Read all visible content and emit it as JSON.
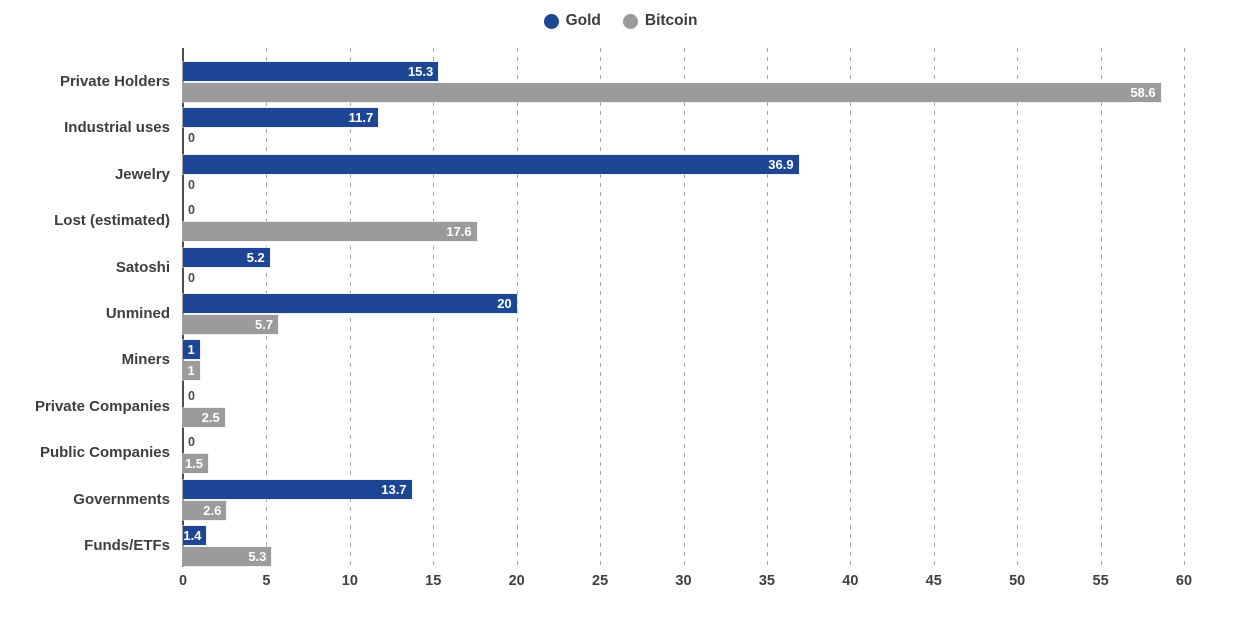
{
  "background": "#ffffff",
  "legend": {
    "position": "top-center"
  },
  "chart_data": {
    "type": "bar",
    "orientation": "horizontal",
    "title": "",
    "xlabel": "",
    "ylabel": "",
    "xlim": [
      0,
      60
    ],
    "x_ticks": [
      0,
      5,
      10,
      15,
      20,
      25,
      30,
      35,
      40,
      45,
      50,
      55,
      60
    ],
    "grid": "dashed-vertical",
    "legend_position": "top-center",
    "categories": [
      "Private Holders",
      "Industrial uses",
      "Jewelry",
      "Lost (estimated)",
      "Satoshi",
      "Unmined",
      "Miners",
      "Private Companies",
      "Public Companies",
      "Governments",
      "Funds/ETFs"
    ],
    "series": [
      {
        "name": "Gold",
        "color": "#1d4795",
        "values": [
          15.3,
          11.7,
          36.9,
          0,
          5.2,
          20,
          1,
          0,
          0,
          13.7,
          1.4
        ],
        "labels": [
          "15.3",
          "11.7",
          "36.9",
          "0",
          "5.2",
          "20",
          "1",
          "0",
          "0",
          "13.7",
          "1.4"
        ]
      },
      {
        "name": "Bitcoin",
        "color": "#9b9b9d",
        "values": [
          58.6,
          0,
          0,
          17.6,
          0,
          5.7,
          1,
          2.5,
          1.5,
          2.6,
          5.3
        ],
        "labels": [
          "58.6",
          "0",
          "0",
          "17.6",
          "0",
          "5.7",
          "1",
          "2.5",
          "1.5",
          "2.6",
          "5.3"
        ]
      }
    ],
    "value_label_color": "#ffffff",
    "zero_label_color": "#4a4b4d",
    "gridline_color": "#a6a6a8",
    "axis_line_color": "#4e4f52",
    "text_color": "#3e3e40"
  }
}
